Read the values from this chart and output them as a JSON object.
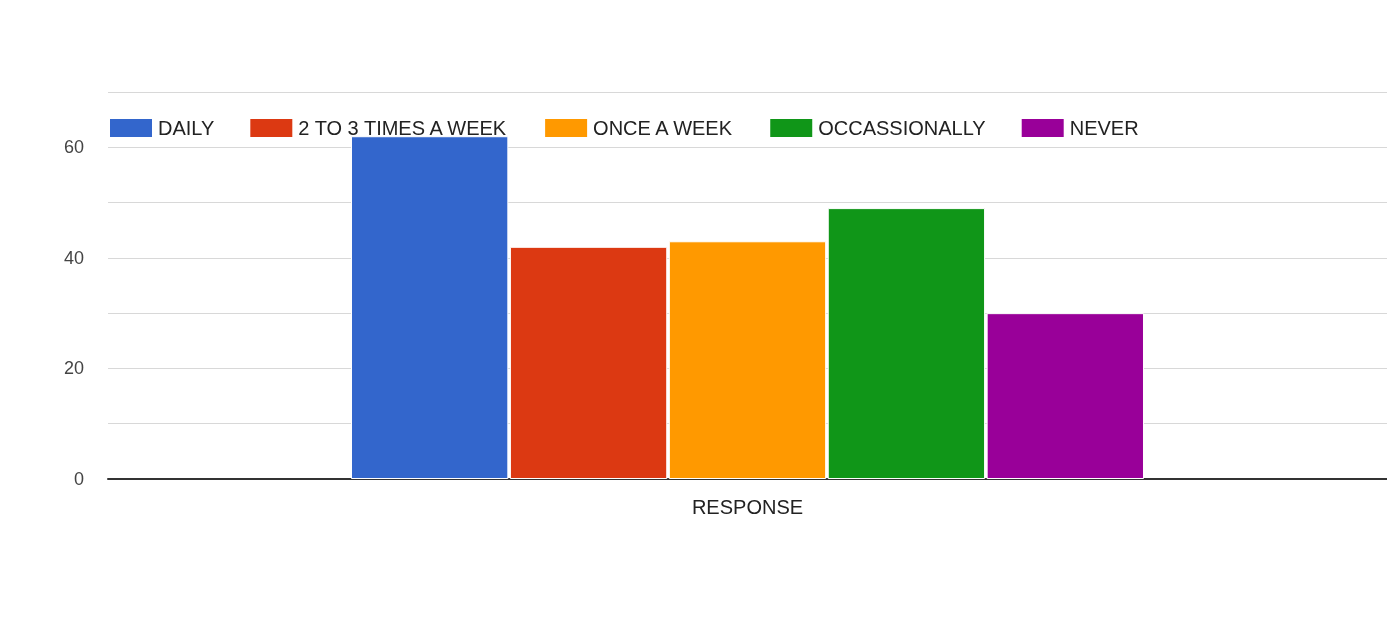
{
  "chart_data": {
    "type": "bar",
    "categories": [
      "RESPONSE"
    ],
    "series": [
      {
        "name": "DAILY",
        "color": "#3366cc",
        "values": [
          62
        ]
      },
      {
        "name": "2 TO 3 TIMES A WEEK",
        "color": "#dc3912",
        "values": [
          42
        ]
      },
      {
        "name": "ONCE A WEEK",
        "color": "#ff9900",
        "values": [
          43
        ]
      },
      {
        "name": "OCCASSIONALLY",
        "color": "#109618",
        "values": [
          49
        ]
      },
      {
        "name": "NEVER",
        "color": "#990099",
        "values": [
          30
        ]
      }
    ],
    "ylim": [
      0,
      70
    ],
    "yticks": [
      0,
      {
        "value": 10,
        "label": null
      },
      20,
      {
        "value": 30,
        "label": null
      },
      40,
      {
        "value": 50,
        "label": null
      },
      60,
      {
        "value": 70,
        "label": null
      }
    ],
    "grid": true,
    "legend": "top left"
  }
}
